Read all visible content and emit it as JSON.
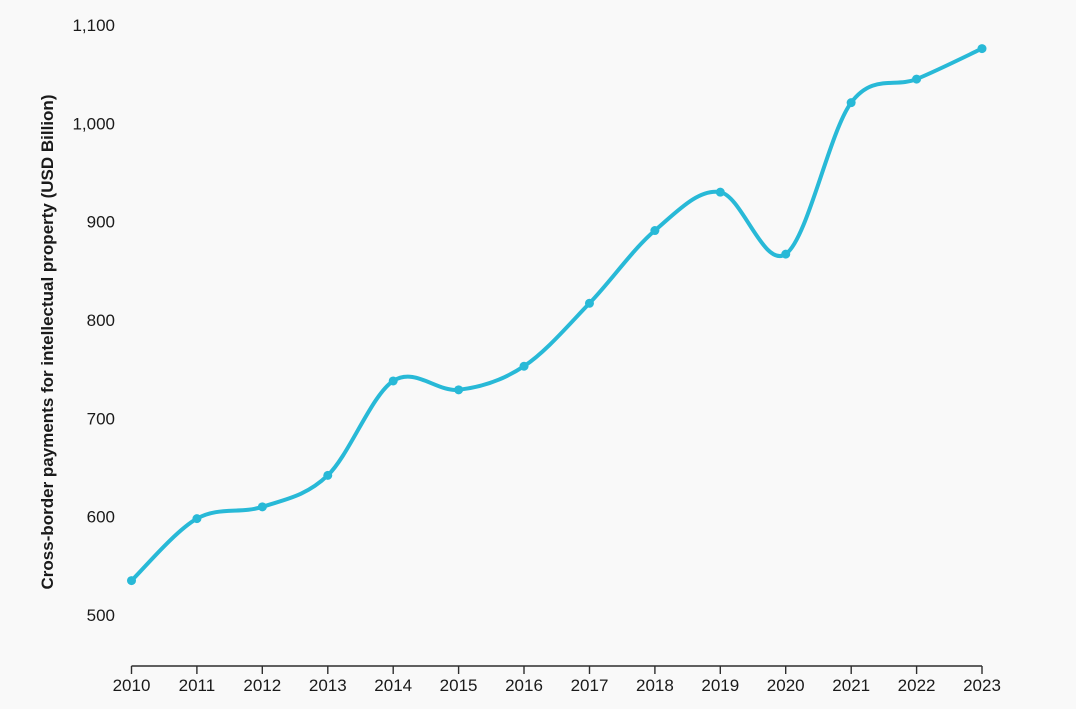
{
  "chart_data": {
    "type": "line",
    "title": "",
    "xlabel": "",
    "ylabel": "Cross-border payments for intellectual property (USD Billion)",
    "series_name": "Cross-border payments for intellectual property",
    "categories": [
      "2010",
      "2011",
      "2012",
      "2013",
      "2014",
      "2015",
      "2016",
      "2017",
      "2018",
      "2019",
      "2020",
      "2021",
      "2022",
      "2023"
    ],
    "values": [
      535,
      598,
      610,
      642,
      738,
      729,
      753,
      817,
      891,
      930,
      867,
      1021,
      1045,
      1076
    ],
    "ylim": [
      500,
      1100
    ],
    "yticks": [
      500,
      600,
      700,
      800,
      900,
      1000,
      1100
    ],
    "ytick_labels": [
      "500",
      "600",
      "700",
      "800",
      "900",
      "1,000",
      "1,100"
    ],
    "grid": false,
    "legend": false,
    "marker": "circle",
    "smooth": true,
    "colors": {
      "line": "#28b9d7",
      "marker": "#28b9d7",
      "axis": "#2e2e2e",
      "text": "#1a1a1a",
      "background": "#f9f9f9"
    }
  }
}
